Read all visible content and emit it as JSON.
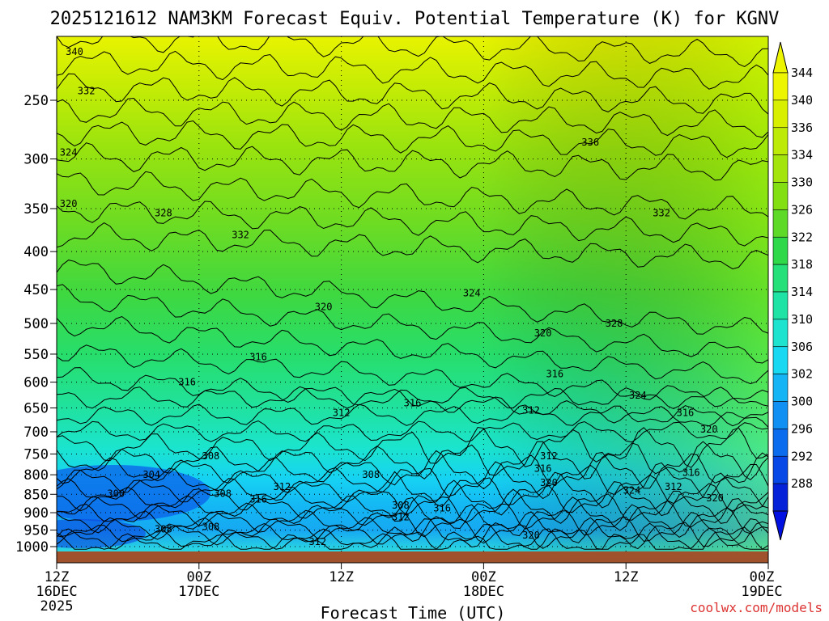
{
  "chart_data": {
    "type": "heatmap",
    "title": "2025121612 NAM3KM Forecast Equiv. Potential Temperature (K) for KGNV",
    "xlabel": "Forecast Time (UTC)",
    "ylabel": "",
    "y_ticks": [
      "250",
      "300",
      "350",
      "400",
      "450",
      "500",
      "550",
      "600",
      "650",
      "700",
      "750",
      "800",
      "850",
      "900",
      "950",
      "1000"
    ],
    "x_ticks": [
      {
        "line1": "12Z",
        "line2": "16DEC",
        "line3": "2025"
      },
      {
        "line1": "00Z",
        "line2": "17DEC",
        "line3": ""
      },
      {
        "line1": "12Z",
        "line2": "",
        "line3": ""
      },
      {
        "line1": "00Z",
        "line2": "18DEC",
        "line3": ""
      },
      {
        "line1": "12Z",
        "line2": "",
        "line3": ""
      },
      {
        "line1": "00Z",
        "line2": "19DEC",
        "line3": ""
      }
    ],
    "x_hours": [
      0,
      12,
      24,
      36,
      48,
      60
    ],
    "y_pressure": [
      250,
      300,
      350,
      400,
      450,
      500,
      550,
      600,
      650,
      700,
      750,
      800,
      850,
      900,
      950,
      1000
    ],
    "ylim": [
      1000,
      200
    ],
    "colorbar": {
      "labels": [
        "344",
        "340",
        "336",
        "334",
        "330",
        "326",
        "322",
        "318",
        "314",
        "310",
        "306",
        "302",
        "300",
        "296",
        "292",
        "288"
      ],
      "colors": [
        "#eef500",
        "#d8f000",
        "#bdea06",
        "#a2e40b",
        "#84df12",
        "#5fd928",
        "#2ed848",
        "#25e078",
        "#1fe3a4",
        "#1ee3cf",
        "#18d8f2",
        "#15b4f5",
        "#1090f2",
        "#0b6cee",
        "#0848e6",
        "#0522d8"
      ]
    },
    "contour_labels": [
      {
        "text": "340",
        "hour": 1.5,
        "p": 215
      },
      {
        "text": "332",
        "hour": 2.5,
        "p": 243
      },
      {
        "text": "324",
        "hour": 1.0,
        "p": 294
      },
      {
        "text": "320",
        "hour": 1.0,
        "p": 345
      },
      {
        "text": "328",
        "hour": 9.0,
        "p": 355
      },
      {
        "text": "332",
        "hour": 15.5,
        "p": 380
      },
      {
        "text": "336",
        "hour": 45.0,
        "p": 285
      },
      {
        "text": "332",
        "hour": 51.0,
        "p": 355
      },
      {
        "text": "324",
        "hour": 35.0,
        "p": 455
      },
      {
        "text": "328",
        "hour": 47.0,
        "p": 500
      },
      {
        "text": "320",
        "hour": 22.5,
        "p": 475
      },
      {
        "text": "320",
        "hour": 41.0,
        "p": 515
      },
      {
        "text": "316",
        "hour": 17.0,
        "p": 555
      },
      {
        "text": "316",
        "hour": 11.0,
        "p": 600
      },
      {
        "text": "316",
        "hour": 42.0,
        "p": 585
      },
      {
        "text": "316",
        "hour": 30.0,
        "p": 640
      },
      {
        "text": "324",
        "hour": 49.0,
        "p": 625
      },
      {
        "text": "312",
        "hour": 24.0,
        "p": 660
      },
      {
        "text": "312",
        "hour": 40.0,
        "p": 655
      },
      {
        "text": "316",
        "hour": 53.0,
        "p": 660
      },
      {
        "text": "320",
        "hour": 55.0,
        "p": 695
      },
      {
        "text": "308",
        "hour": 13.0,
        "p": 755
      },
      {
        "text": "304",
        "hour": 8.0,
        "p": 800
      },
      {
        "text": "300",
        "hour": 5.0,
        "p": 848
      },
      {
        "text": "308",
        "hour": 14.0,
        "p": 848
      },
      {
        "text": "312",
        "hour": 19.0,
        "p": 830
      },
      {
        "text": "316",
        "hour": 17.0,
        "p": 863
      },
      {
        "text": "308",
        "hour": 26.5,
        "p": 800
      },
      {
        "text": "312",
        "hour": 41.5,
        "p": 755
      },
      {
        "text": "316",
        "hour": 41.0,
        "p": 785
      },
      {
        "text": "320",
        "hour": 41.5,
        "p": 820
      },
      {
        "text": "324",
        "hour": 48.5,
        "p": 840
      },
      {
        "text": "312",
        "hour": 52.0,
        "p": 830
      },
      {
        "text": "316",
        "hour": 53.5,
        "p": 795
      },
      {
        "text": "320",
        "hour": 55.5,
        "p": 860
      },
      {
        "text": "308",
        "hour": 29.0,
        "p": 880
      },
      {
        "text": "316",
        "hour": 32.5,
        "p": 888
      },
      {
        "text": "312",
        "hour": 29.0,
        "p": 912
      },
      {
        "text": "308",
        "hour": 9.0,
        "p": 948
      },
      {
        "text": "308",
        "hour": 13.0,
        "p": 940
      },
      {
        "text": "312",
        "hour": 22.0,
        "p": 985
      },
      {
        "text": "320",
        "hour": 40.0,
        "p": 965
      }
    ]
  },
  "credit": "coolwx.com/models"
}
